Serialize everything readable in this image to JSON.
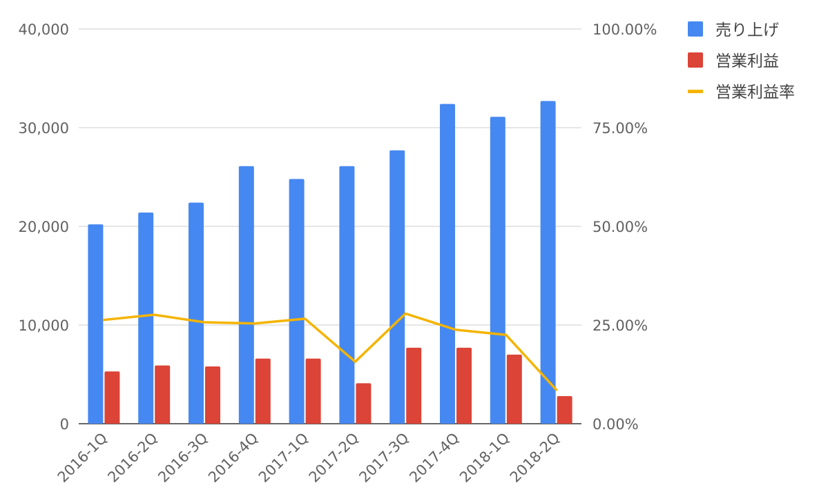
{
  "chart_data": {
    "type": "bar",
    "categories": [
      "2016-1Q",
      "2016-2Q",
      "2016-3Q",
      "2016-4Q",
      "2017-1Q",
      "2017-2Q",
      "2017-3Q",
      "2017-4Q",
      "2018-1Q",
      "2018-2Q"
    ],
    "series": [
      {
        "name": "売り上げ",
        "type": "bar",
        "axis": "left",
        "color": "#4688f1",
        "values": [
          20200,
          21400,
          22400,
          26100,
          24800,
          26100,
          27700,
          32400,
          31100,
          32700
        ]
      },
      {
        "name": "営業利益",
        "type": "bar",
        "axis": "left",
        "color": "#db4437",
        "values": [
          5300,
          5900,
          5800,
          6600,
          6600,
          4100,
          7700,
          7700,
          7000,
          2800
        ]
      },
      {
        "name": "営業利益率",
        "type": "line",
        "axis": "right",
        "color": "#f4b400",
        "values": [
          26.3,
          27.6,
          25.7,
          25.4,
          26.6,
          15.7,
          27.9,
          23.8,
          22.5,
          8.6
        ]
      }
    ],
    "y_left": {
      "ylim": [
        0,
        40000
      ],
      "ticks": [
        0,
        10000,
        20000,
        30000,
        40000
      ],
      "tick_labels": [
        "0",
        "10,000",
        "20,000",
        "30,000",
        "40,000"
      ]
    },
    "y_right": {
      "ylim": [
        0,
        100
      ],
      "ticks": [
        0,
        25,
        50,
        75,
        100
      ],
      "tick_labels": [
        "0.00%",
        "25.00%",
        "50.00%",
        "75.00%",
        "100.00%"
      ]
    },
    "grid": true,
    "legend": "right",
    "title": "",
    "xlabel": "",
    "ylabel": ""
  }
}
